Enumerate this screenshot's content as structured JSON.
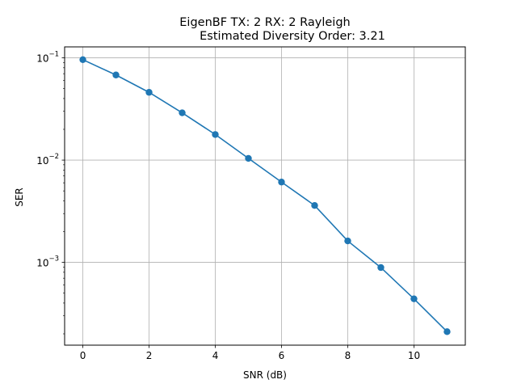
{
  "chart_data": {
    "type": "line",
    "title_line1": "EigenBF TX: 2 RX: 2 Rayleigh",
    "title_line2": "Estimated Diversity Order: 3.21",
    "xlabel": "SNR (dB)",
    "ylabel": "SER",
    "x_scale": "linear",
    "y_scale": "log",
    "xlim": [
      -0.55,
      11.55
    ],
    "ylim": [
      0.000155,
      0.128
    ],
    "x_ticks": [
      0,
      2,
      4,
      6,
      8,
      10
    ],
    "x_tick_labels": [
      "0",
      "2",
      "4",
      "6",
      "8",
      "10"
    ],
    "y_ticks": [
      0.001,
      0.01,
      0.1
    ],
    "y_tick_labels": [
      {
        "base": "10",
        "exp": "−3"
      },
      {
        "base": "10",
        "exp": "−2"
      },
      {
        "base": "10",
        "exp": "−1"
      }
    ],
    "grid": true,
    "legend": false,
    "series": [
      {
        "color": "#1f77b4",
        "marker": "circle",
        "x": [
          0,
          1,
          2,
          3,
          4,
          5,
          6,
          7,
          8,
          9,
          10,
          11
        ],
        "y": [
          0.096,
          0.068,
          0.046,
          0.029,
          0.0178,
          0.0104,
          0.0061,
          0.0036,
          0.00162,
          0.00089,
          0.00044,
          0.00021
        ]
      }
    ]
  }
}
